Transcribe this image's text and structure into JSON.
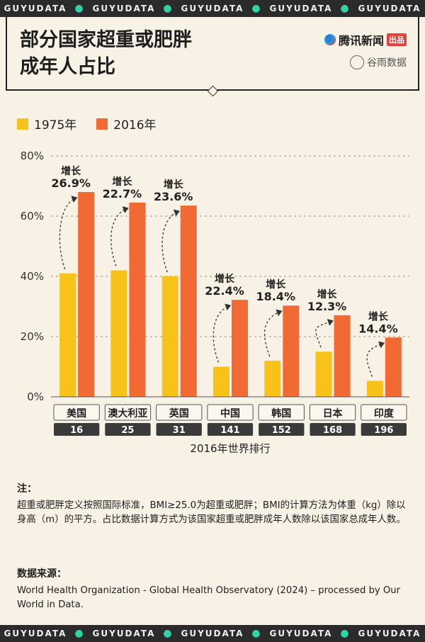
{
  "strip_word": "GUYUDATA",
  "header": {
    "title_line1": "部分国家超重或肥胖",
    "title_line2": "成年人占比",
    "brand_primary": "腾讯新闻",
    "brand_primary_badge": "出品",
    "brand_secondary": "谷雨数据"
  },
  "legend": {
    "items": [
      {
        "label": "1975年",
        "color": "#f7c31b"
      },
      {
        "label": "2016年",
        "color": "#f26a33"
      }
    ]
  },
  "chart_data": {
    "type": "bar",
    "categories": [
      "美国",
      "澳大利亚",
      "英国",
      "中国",
      "韩国",
      "日本",
      "印度"
    ],
    "ranks": [
      "16",
      "25",
      "31",
      "141",
      "152",
      "168",
      "196"
    ],
    "series": [
      {
        "name": "1975年",
        "color": "#f7c31b",
        "values": [
          41,
          42,
          40,
          10,
          12,
          15,
          5.3
        ]
      },
      {
        "name": "2016年",
        "color": "#f26a33",
        "values": [
          68,
          64.5,
          63.5,
          32.2,
          30.3,
          27.1,
          19.7
        ]
      }
    ],
    "growth_prefix": "增长",
    "growth_labels": [
      "26.9%",
      "22.7%",
      "23.6%",
      "22.4%",
      "18.4%",
      "12.3%",
      "14.4%"
    ],
    "y_ticks": [
      "0%",
      "20%",
      "40%",
      "60%",
      "80%"
    ],
    "ylim": [
      0,
      80
    ],
    "xlabel": "2016年世界排行"
  },
  "notes": {
    "heading": "注：",
    "text": "超重或肥胖定义按照国际标准，BMI≥25.0为超重或肥胖；BMI的计算方法为体重（kg）除以身高（m）的平方。占比数据计算方式为该国家超重或肥胖成年人数除以该国家总成年人数。"
  },
  "source": {
    "heading": "数据来源：",
    "text": "World Health Organization - Global Health Observatory (2024) – processed by Our World in Data."
  }
}
